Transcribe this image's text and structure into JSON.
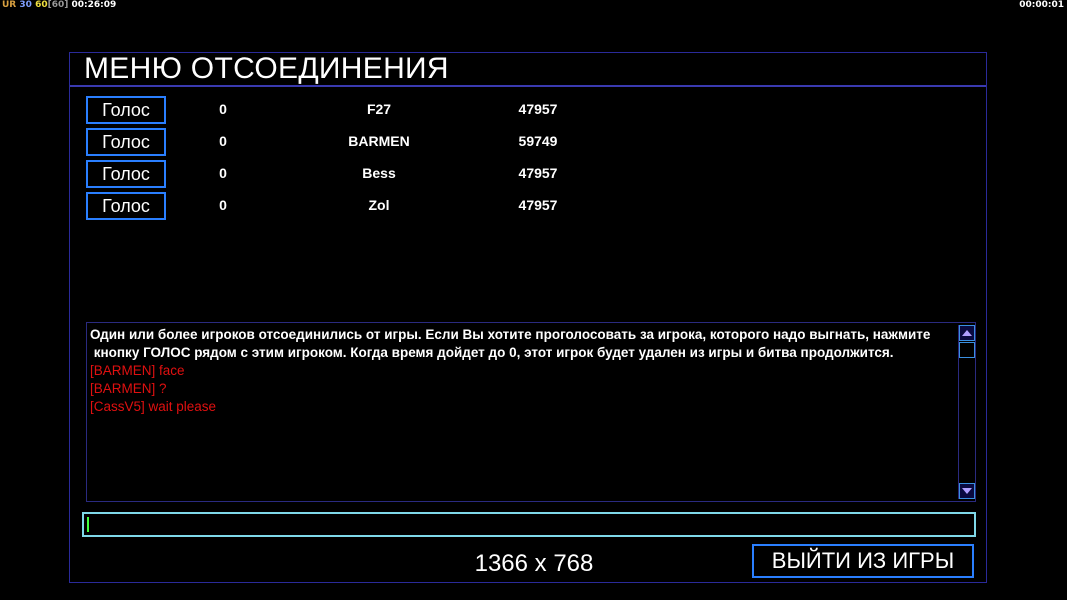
{
  "hud": {
    "ur": "UR",
    "fps1": "30",
    "fps2": "60",
    "fps3": "[60]",
    "time": "00:26:09",
    "timer_right": "00:00:01"
  },
  "menu": {
    "title": "МЕНЮ ОТСОЕДИНЕНИЯ",
    "players": [
      {
        "vote_label": "Голос",
        "votes": "0",
        "name": "F27",
        "id": "47957"
      },
      {
        "vote_label": "Голос",
        "votes": "0",
        "name": "BARMEN",
        "id": "59749"
      },
      {
        "vote_label": "Голос",
        "votes": "0",
        "name": "Bess",
        "id": "47957"
      },
      {
        "vote_label": "Голос",
        "votes": "0",
        "name": "Zol",
        "id": "47957"
      }
    ],
    "info_line1": "Один или более игроков отсоединились от игры. Если Вы хотите проголосовать за игрока, которого надо выгнать, нажмите",
    "info_line2": " кнопку ГОЛОС рядом с этим игроком. Когда время дойдет до 0, этот игрок будет удален из игры и битва продолжится.",
    "chat": [
      "[BARMEN] face",
      "[BARMEN] ?",
      "[CassV5] wait please"
    ],
    "input_value": "",
    "resolution": "1366 x 768",
    "exit_label": "ВЫЙТИ ИЗ ИГРЫ"
  },
  "colors": {
    "frame": "#2a2a9a",
    "button_border": "#2a7fff",
    "chat_red": "#e01010",
    "input_border": "#7fd8e8"
  }
}
